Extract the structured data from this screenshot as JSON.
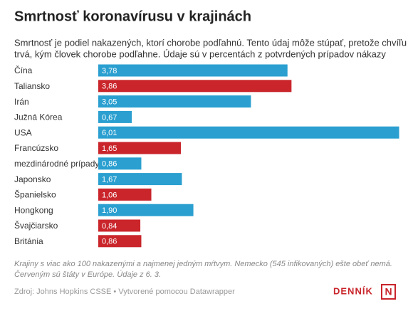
{
  "chart_data": {
    "type": "bar",
    "orientation": "horizontal",
    "title": "Smrtnosť koronavírusu v krajinách",
    "subtitle": [
      "Smrtnosť je podiel nakazených, ktorí chorobe podľahnú. Tento údaj môže stúpať, pretože chvíľu",
      "trvá, kým človek chorobe podľahne. Údaje sú v percentách z potvrdených prípadov nákazy"
    ],
    "categories": [
      "Čína",
      "Taliansko",
      "Irán",
      "Južná Kórea",
      "USA",
      "Francúzsko",
      "mezdinárodné prípady",
      "Japonsko",
      "Španielsko",
      "Hongkong",
      "Švajčiarsko",
      "Británia"
    ],
    "values": [
      3.78,
      3.86,
      3.05,
      0.67,
      6.01,
      1.65,
      0.86,
      1.67,
      1.06,
      1.9,
      0.84,
      0.86
    ],
    "value_labels": [
      "3,78",
      "3,86",
      "3,05",
      "0,67",
      "6,01",
      "1,65",
      "0,86",
      "1,67",
      "1,06",
      "1,90",
      "0,84",
      "0,86"
    ],
    "colors": [
      "#2a9fd0",
      "#c9252b",
      "#2a9fd0",
      "#2a9fd0",
      "#2a9fd0",
      "#c9252b",
      "#2a9fd0",
      "#2a9fd0",
      "#c9252b",
      "#2a9fd0",
      "#c9252b",
      "#c9252b"
    ],
    "notes": [
      "Krajiny s viac ako 100 nakazenými a najmenej jedným mŕtvym. Nemecko (545 infikovaných) ešte obeť nemá.",
      "Červeným sú štáty v Európe. Údaje z 6. 3."
    ],
    "source": "Zdroj: Johns Hopkins CSSE • Vytvorené pomocou Datawrapper",
    "logo": [
      "DENNÍK",
      "N"
    ]
  }
}
